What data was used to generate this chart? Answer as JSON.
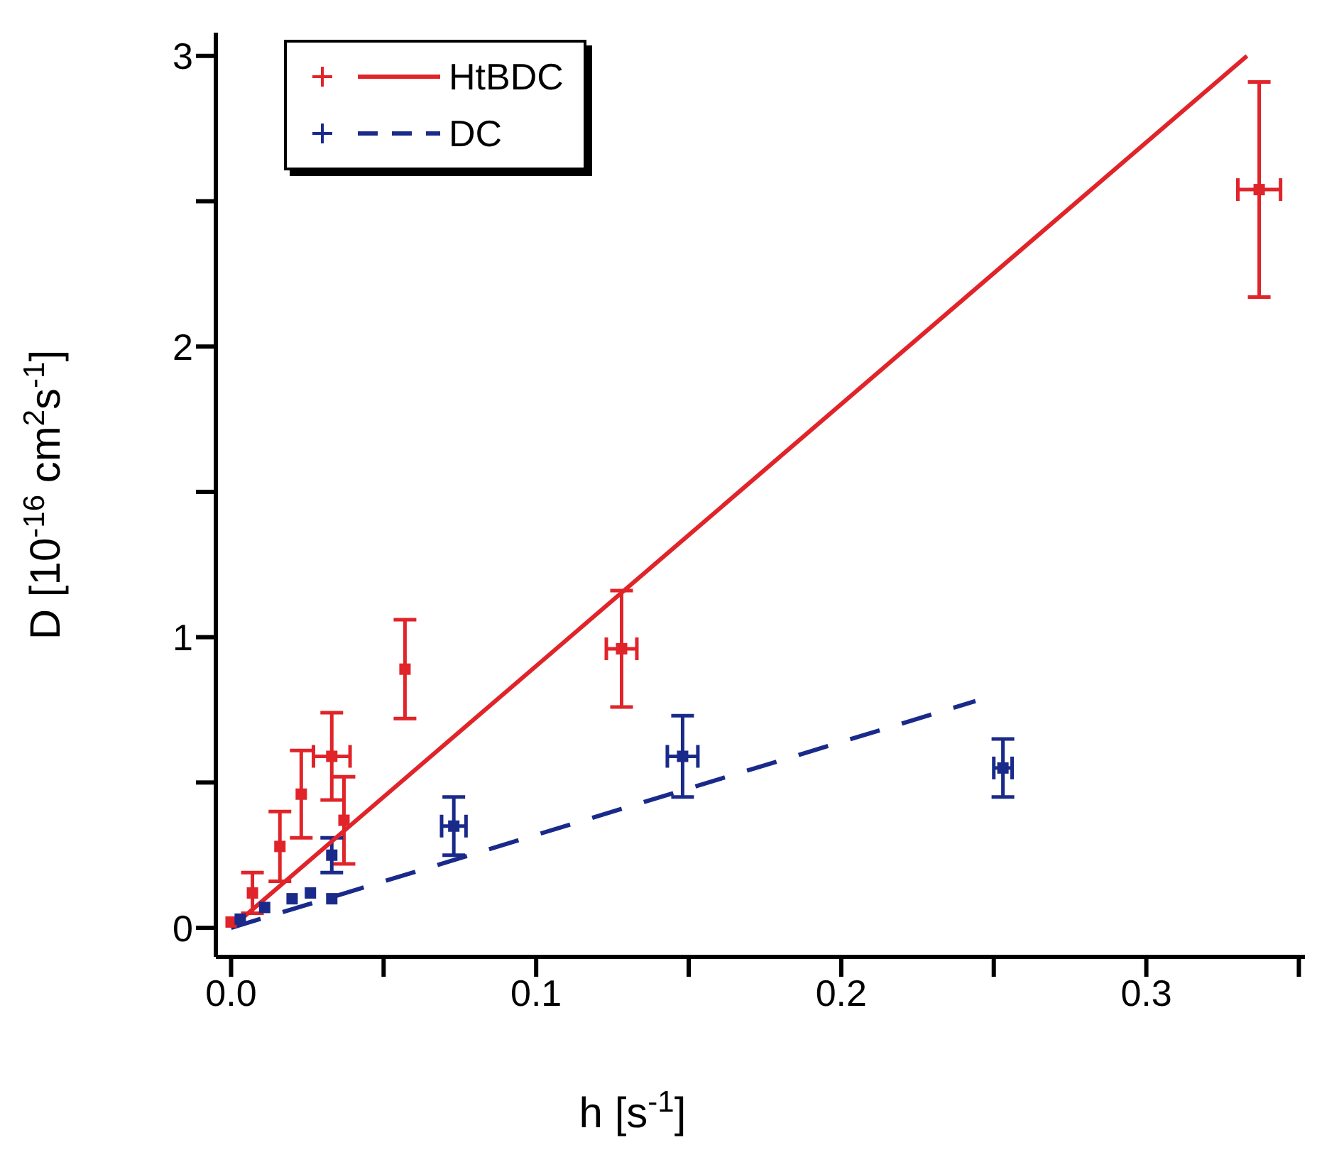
{
  "chart_data": {
    "type": "scatter",
    "xlabel": "h [s$^{-1}$]",
    "ylabel": "D [10$^{-16}$ cm$^{2}$s$^{-1}$]",
    "xlim": [
      -0.005,
      0.352
    ],
    "ylim": [
      -0.1,
      3.08
    ],
    "xticks": [
      {
        "value": 0,
        "label": "0.0"
      },
      {
        "value": 0.05,
        "label": null
      },
      {
        "value": 0.1,
        "label": "0.1"
      },
      {
        "value": 0.15,
        "label": null
      },
      {
        "value": 0.2,
        "label": "0.2"
      },
      {
        "value": 0.25,
        "label": null
      },
      {
        "value": 0.3,
        "label": "0.3"
      },
      {
        "value": 0.35,
        "label": null
      }
    ],
    "yticks": [
      0,
      {
        "value": 0.5,
        "label": null
      },
      1,
      {
        "value": 1.5,
        "label": null
      },
      2,
      {
        "value": 2.5,
        "label": null
      },
      3
    ],
    "grid": false,
    "legend": "top left",
    "series": [
      {
        "name": "HtBDC",
        "marker": "square",
        "color": "#e0242a",
        "x": [
          0.0,
          0.007,
          0.016,
          0.023,
          0.033,
          0.037,
          0.057,
          0.128,
          0.337
        ],
        "values": [
          0.02,
          0.12,
          0.28,
          0.46,
          0.59,
          0.37,
          0.89,
          0.96,
          2.54
        ],
        "errors": [
          null,
          0.07,
          0.12,
          0.15,
          0.15,
          0.15,
          0.17,
          0.2,
          0.37
        ],
        "xerrors": [
          null,
          null,
          null,
          null,
          0.006,
          null,
          null,
          0.005,
          0.007
        ]
      },
      {
        "name": "DC",
        "marker": "square",
        "color": "#1a2a8a",
        "x": [
          0.003,
          0.011,
          0.02,
          0.026,
          0.033,
          0.033,
          0.073,
          0.148,
          0.253
        ],
        "values": [
          0.03,
          0.07,
          0.1,
          0.12,
          0.1,
          0.25,
          0.35,
          0.59,
          0.55
        ],
        "errors": [
          null,
          null,
          null,
          null,
          null,
          0.06,
          0.1,
          0.14,
          0.1
        ],
        "xerrors": [
          null,
          null,
          null,
          null,
          null,
          null,
          0.004,
          0.005,
          0.003
        ]
      },
      {
        "type": "line",
        "marker": "none",
        "color": "#e0242a",
        "line_style": "solid",
        "x": [
          0,
          0.333
        ],
        "values": [
          0,
          3.0
        ]
      },
      {
        "type": "line",
        "marker": "none",
        "color": "#1a2a8a",
        "line_style": "dashed",
        "x": [
          0,
          0.244
        ],
        "values": [
          0,
          0.78
        ]
      }
    ]
  }
}
